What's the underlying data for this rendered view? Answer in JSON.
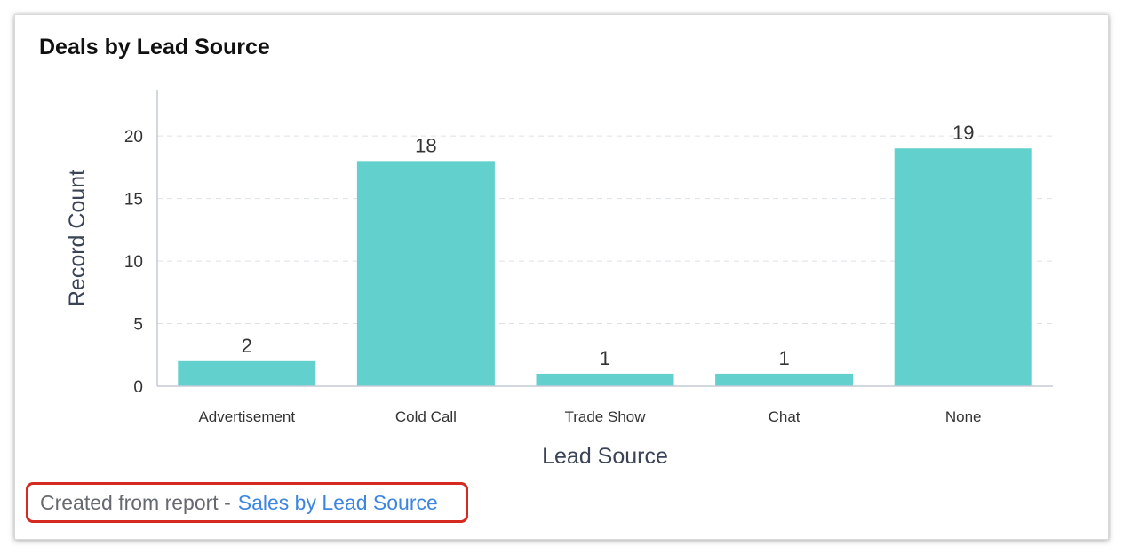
{
  "widget": {
    "title": "Deals by Lead Source"
  },
  "footer": {
    "prefix": "Created from report -",
    "link_text": "Sales by Lead Source"
  },
  "colors": {
    "bar": "#62d1ce",
    "axis": "#c3cad6",
    "grid": "#dde1e6",
    "highlight_border": "#d42a1f",
    "link": "#3d86e0"
  },
  "chart_data": {
    "type": "bar",
    "title": "Deals by Lead Source",
    "xlabel": "Lead Source",
    "ylabel": "Record Count",
    "categories": [
      "Advertisement",
      "Cold Call",
      "Trade Show",
      "Chat",
      "None"
    ],
    "values": [
      2,
      18,
      1,
      1,
      19
    ],
    "data_labels": [
      "2",
      "18",
      "1",
      "1",
      "19"
    ],
    "ylim": [
      0,
      23.7
    ],
    "yticks": [
      0,
      5,
      10,
      15,
      20
    ],
    "grid": true,
    "legend": "none"
  }
}
